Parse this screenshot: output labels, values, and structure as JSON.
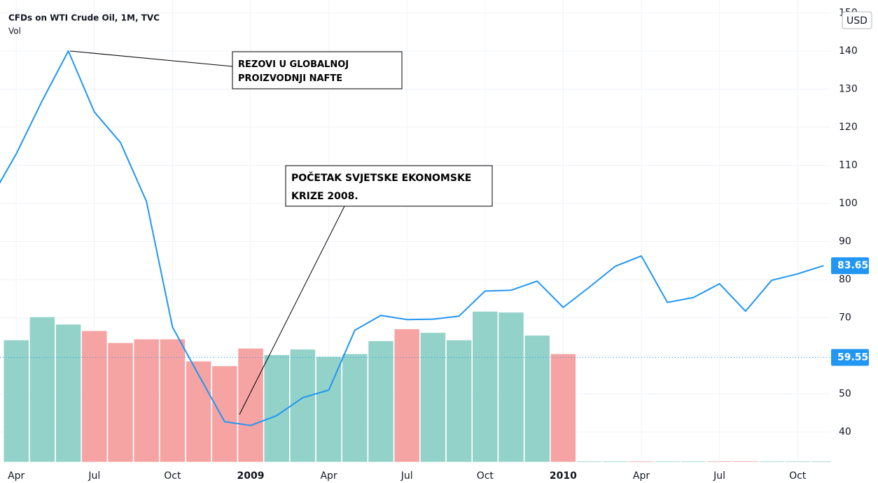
{
  "chart_data": {
    "type": "line",
    "title": "CFDs on WTI Crude Oil, 1M, TVC",
    "subtitle": "Vol",
    "currency": "USD",
    "categories": [
      null,
      "Apr",
      null,
      null,
      "Jul",
      null,
      null,
      "Oct",
      null,
      null,
      "2009",
      null,
      null,
      "Apr",
      null,
      null,
      "Jul",
      null,
      null,
      "Oct",
      null,
      null,
      "2010",
      null,
      null,
      "Apr",
      null,
      null,
      "Jul",
      null,
      null,
      "Oct",
      null
    ],
    "values": [
      101,
      113,
      127,
      140,
      124,
      116,
      100.5,
      67.5,
      55,
      42.7,
      41.7,
      44.3,
      49,
      51,
      66.7,
      70.6,
      69.5,
      69.6,
      70.4,
      77,
      77.2,
      79.6,
      72.7,
      78,
      83.5,
      86.2,
      74,
      75.3,
      78.9,
      71.7,
      79.8,
      81.5,
      83.65
    ],
    "color": "#2196f3",
    "ylim": [
      32.1,
      153.4
    ],
    "yticks": [
      40,
      50,
      60,
      70,
      80,
      90,
      100,
      110,
      120,
      130,
      140,
      150
    ],
    "grid": true,
    "last_price": 83.65,
    "marker_price": 59.55,
    "volume": {
      "values": [
        null,
        132,
        157,
        149,
        142,
        129,
        133,
        133,
        109,
        104,
        123,
        116,
        122,
        114,
        117,
        131,
        144,
        140,
        132,
        163,
        162,
        137,
        117,
        1,
        1,
        1,
        1,
        1,
        1,
        1,
        1,
        1,
        1
      ],
      "colors": [
        null,
        "#92d2c9",
        "#92d2c9",
        "#92d2c9",
        "#f5a3a3",
        "#f5a3a3",
        "#f5a3a3",
        "#f5a3a3",
        "#f5a3a3",
        "#f5a3a3",
        "#f5a3a3",
        "#92d2c9",
        "#92d2c9",
        "#92d2c9",
        "#92d2c9",
        "#92d2c9",
        "#f5a3a3",
        "#92d2c9",
        "#92d2c9",
        "#92d2c9",
        "#92d2c9",
        "#92d2c9",
        "#f5a3a3",
        "#92d2c9",
        "#92d2c9",
        "#f5a3a3",
        "#92d2c9",
        "#92d2c9",
        "#f5a3a3",
        "#f5a3a3",
        "#92d2c9",
        "#92d2c9",
        "#92d2c9"
      ],
      "ylim": [
        0,
        500
      ]
    },
    "annotations": [
      {
        "lines": [
          "REZOVI U GLOBALNOJ",
          "PROIZVODNJI NAFTE"
        ]
      },
      {
        "lines": [
          "POČETAK SVJETSKE EKONOMSKE",
          "KRIZE 2008."
        ]
      }
    ]
  }
}
